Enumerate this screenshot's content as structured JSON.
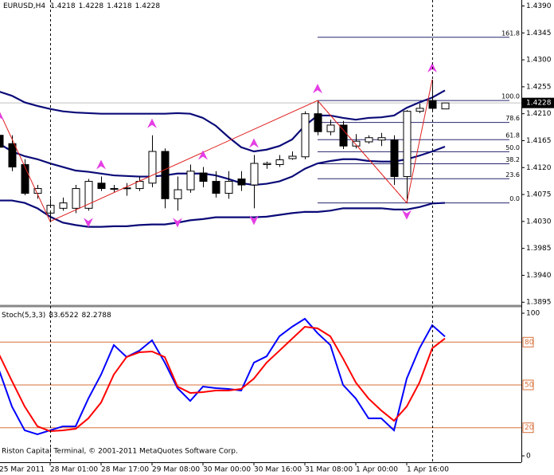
{
  "chart_data": [
    {
      "type": "candlestick",
      "title": "EURUSD,H4",
      "header_values": [
        1.4218,
        1.4228,
        1.4218,
        1.4228
      ],
      "categories": [
        "25 Mar 2011",
        null,
        null,
        null,
        "28 Mar 01:00",
        null,
        null,
        null,
        "28 Mar 17:00",
        null,
        null,
        null,
        "29 Mar 08:00",
        null,
        null,
        null,
        "30 Mar 00:00",
        null,
        null,
        null,
        "30 Mar 16:00",
        null,
        null,
        null,
        "31 Mar 08:00",
        null,
        null,
        null,
        "1 Apr 00:00",
        null,
        null,
        null,
        "1 Apr 16:00",
        null,
        null,
        null
      ],
      "open": [
        1.4174,
        1.416,
        1.4125,
        1.4077,
        1.4044,
        1.4052,
        1.4052,
        1.4052,
        1.4094,
        1.4085,
        1.4085,
        1.4085,
        1.4094,
        1.4147,
        1.4068,
        1.4083,
        1.4111,
        1.4097,
        1.4077,
        1.4101,
        1.4091,
        1.4125,
        1.4125,
        1.4135,
        1.4138,
        1.421,
        1.418,
        1.4191,
        1.4156,
        1.4163,
        1.4166,
        1.4166,
        1.4105,
        1.4214,
        1.4232,
        1.4218
      ],
      "high": [
        1.4187,
        1.4174,
        1.4134,
        1.4091,
        1.4068,
        1.407,
        1.4091,
        1.4101,
        1.4105,
        1.4091,
        1.4094,
        1.4105,
        1.4174,
        1.4152,
        1.4105,
        1.4125,
        1.4121,
        1.4114,
        1.4114,
        1.4114,
        1.4141,
        1.413,
        1.4141,
        1.4147,
        1.4214,
        1.4232,
        1.42,
        1.4198,
        1.4176,
        1.4174,
        1.4178,
        1.4174,
        1.4216,
        1.4227,
        1.4267,
        1.4228
      ],
      "low": [
        1.4147,
        1.4114,
        1.4074,
        1.4068,
        1.403,
        1.4048,
        1.4044,
        1.4048,
        1.4081,
        1.4078,
        1.4073,
        1.4081,
        1.4087,
        1.4052,
        1.4048,
        1.4078,
        1.4087,
        1.407,
        1.4068,
        1.4081,
        1.4052,
        1.4118,
        1.4121,
        1.4133,
        1.4134,
        1.4174,
        1.4174,
        1.4151,
        1.4152,
        1.416,
        1.4156,
        1.4091,
        1.4061,
        1.4211,
        1.4214,
        1.4218
      ],
      "close": [
        1.4154,
        1.4121,
        1.4077,
        1.4085,
        1.4057,
        1.4061,
        1.4085,
        1.4097,
        1.4085,
        1.4084,
        1.4086,
        1.4097,
        1.4147,
        1.4068,
        1.4083,
        1.4114,
        1.4097,
        1.4077,
        1.4097,
        1.4091,
        1.4127,
        1.4127,
        1.4133,
        1.4139,
        1.421,
        1.418,
        1.4191,
        1.4156,
        1.4164,
        1.417,
        1.417,
        1.4105,
        1.4214,
        1.4219,
        1.4219,
        1.4228
      ],
      "bands": {
        "color": "#0a0a78",
        "upper": [
          1.4247,
          1.424,
          1.4229,
          1.4223,
          1.4218,
          1.4214,
          1.4212,
          1.4211,
          1.421,
          1.421,
          1.421,
          1.421,
          1.421,
          1.421,
          1.4211,
          1.421,
          1.4203,
          1.419,
          1.4171,
          1.4154,
          1.4147,
          1.415,
          1.4156,
          1.4167,
          1.419,
          1.4207,
          1.4207,
          1.4203,
          1.42,
          1.4203,
          1.4204,
          1.4207,
          1.422,
          1.4229,
          1.4237,
          1.4249
        ],
        "middle": [
          1.416,
          1.4147,
          1.4139,
          1.4134,
          1.4127,
          1.4121,
          1.4115,
          1.4113,
          1.411,
          1.4107,
          1.4106,
          1.4105,
          1.4105,
          1.4107,
          1.411,
          1.411,
          1.411,
          1.4107,
          1.4101,
          1.4094,
          1.4091,
          1.4093,
          1.4097,
          1.4105,
          1.4118,
          1.4127,
          1.4131,
          1.4134,
          1.4134,
          1.4131,
          1.413,
          1.413,
          1.4134,
          1.414,
          1.4147,
          1.4155
        ],
        "lower": [
          1.4065,
          1.4065,
          1.4061,
          1.4052,
          1.4038,
          1.4028,
          1.4024,
          1.4021,
          1.4021,
          1.4022,
          1.4022,
          1.4024,
          1.4025,
          1.4025,
          1.4028,
          1.4032,
          1.4034,
          1.4037,
          1.4037,
          1.4037,
          1.4037,
          1.4038,
          1.4041,
          1.4044,
          1.4046,
          1.4046,
          1.4048,
          1.4052,
          1.4052,
          1.4052,
          1.4052,
          1.405,
          1.405,
          1.4054,
          1.406,
          1.4061
        ]
      },
      "zigzag": {
        "color": "#e02020",
        "x": [
          0,
          4,
          25,
          32,
          34
        ],
        "values": [
          1.4214,
          1.403,
          1.4232,
          1.4061,
          1.4267
        ]
      },
      "fractals": {
        "color": "#e43ee4",
        "up": [
          0,
          8,
          12,
          16,
          20,
          25,
          34
        ],
        "down": [
          7,
          14,
          20,
          32
        ]
      },
      "fibonacci": {
        "color": "#26266e",
        "x": [
          25,
          32
        ],
        "values": [
          1.4232,
          1.4061
        ],
        "levels": [
          161.8,
          {
            "value": 100,
            "label": "100.0"
          },
          78.6,
          61.8,
          {
            "value": 50,
            "label": "50.0"
          },
          38.2,
          23.6,
          {
            "value": 0,
            "label": "0.0"
          }
        ]
      },
      "vertical_lines": [
        4,
        34
      ],
      "ylim": [
        1.389,
        1.44
      ],
      "yticks": [
        {
          "value": 1.439,
          "label": "1.4390"
        },
        1.4345,
        {
          "value": 1.43,
          "label": "1.4300"
        },
        1.4255,
        {
          "value": 1.421,
          "label": "1.4210"
        },
        1.4165,
        {
          "value": 1.412,
          "label": "1.4120"
        },
        1.4075,
        {
          "value": 1.403,
          "label": "1.4030"
        },
        1.3985,
        {
          "value": 1.394,
          "label": "1.3940"
        },
        1.3895
      ]
    },
    {
      "type": "line",
      "title": "Stoch(5,3,3)",
      "header_values": [
        83.6522,
        82.2788
      ],
      "annotation": "Riston Capital Terminal, © 2001-2011 MetaQuotes Software Corp.",
      "series": [
        {
          "color": "#0000ff",
          "values": [
            59.8,
            34.6,
            17.9,
            15.1,
            17.9,
            20.7,
            20.7,
            40.2,
            57.0,
            77.7,
            69.3,
            73.7,
            81.0,
            65.4,
            47.5,
            38.5,
            48.6,
            47.5,
            46.9,
            45.8,
            65.4,
            69.8,
            83.8,
            90.5,
            96.1,
            86.0,
            77.7,
            49.7,
            40.2,
            26.3,
            26.3,
            17.9,
            54.2,
            75.4,
            91.6,
            83.6522
          ]
        },
        {
          "color": "#ff0000",
          "values": [
            70.9,
            52.5,
            34.6,
            20.7,
            17.3,
            17.9,
            19.0,
            26.3,
            37.4,
            57.0,
            69.3,
            72.6,
            73.2,
            69.3,
            48.6,
            44.1,
            44.7,
            45.8,
            45.8,
            46.9,
            54.2,
            65.4,
            73.7,
            82.1,
            90.5,
            89.4,
            83.8,
            68.2,
            51.4,
            40.2,
            31.8,
            24.6,
            34.6,
            51.4,
            75.4,
            82.2788
          ]
        }
      ],
      "levels": [
        80,
        50,
        20
      ],
      "levels_color": "#d8703a",
      "ylim": [
        0,
        100
      ],
      "yticks": [
        0,
        100
      ]
    }
  ]
}
